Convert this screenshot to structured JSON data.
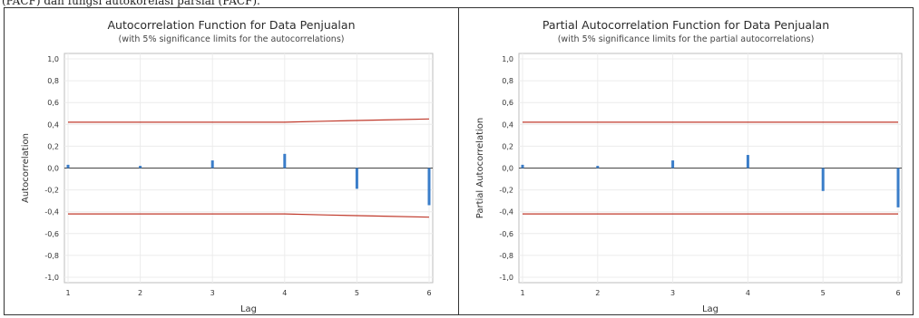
{
  "page": {
    "top_snippet": "(PACF) dan fungsi autokorelasi parsial (PACF)."
  },
  "chart_data": [
    {
      "type": "bar",
      "title": "Autocorrelation Function for Data Penjualan",
      "subtitle": "(with 5% significance limits for the autocorrelations)",
      "xlabel": "Lag",
      "ylabel": "Autocorrelation",
      "ylim": [
        -1.0,
        1.0
      ],
      "y_ticks": [
        "1,0",
        "0,8",
        "0,6",
        "0,4",
        "0,2",
        "0,0",
        "-0,2",
        "-0,4",
        "-0,6",
        "-0,8",
        "-1,0"
      ],
      "x_ticks": [
        "1",
        "2",
        "3",
        "4",
        "5",
        "6"
      ],
      "x": [
        1,
        2,
        3,
        4,
        5,
        6
      ],
      "values": [
        0.03,
        0.02,
        0.07,
        0.13,
        -0.19,
        -0.34
      ],
      "upper_limit": [
        [
          1,
          0.42
        ],
        [
          2,
          0.42
        ],
        [
          3,
          0.42
        ],
        [
          4,
          0.42
        ],
        [
          4.6,
          0.43
        ],
        [
          5.3,
          0.44
        ],
        [
          6,
          0.45
        ]
      ],
      "lower_limit": [
        [
          1,
          -0.42
        ],
        [
          2,
          -0.42
        ],
        [
          3,
          -0.42
        ],
        [
          4,
          -0.42
        ],
        [
          4.6,
          -0.43
        ],
        [
          5.3,
          -0.44
        ],
        [
          6,
          -0.45
        ]
      ],
      "grid": true,
      "colors": {
        "bar": "#3a7dc9",
        "limit": "#c0392b",
        "zero": "#444444",
        "grid": "#ececec"
      }
    },
    {
      "type": "bar",
      "title": "Partial Autocorrelation Function for Data Penjualan",
      "subtitle": "(with 5% significance limits for the partial autocorrelations)",
      "xlabel": "Lag",
      "ylabel": "Partial Autocorrelation",
      "ylim": [
        -1.0,
        1.0
      ],
      "y_ticks": [
        "1,0",
        "0,8",
        "0,6",
        "0,4",
        "0,2",
        "0,0",
        "-0,2",
        "-0,4",
        "-0,6",
        "-0,8",
        "-1,0"
      ],
      "x_ticks": [
        "1",
        "2",
        "3",
        "4",
        "5",
        "6"
      ],
      "x": [
        1,
        2,
        3,
        4,
        5,
        6
      ],
      "values": [
        0.03,
        0.02,
        0.07,
        0.12,
        -0.21,
        -0.36
      ],
      "upper_limit": [
        [
          1,
          0.42
        ],
        [
          6,
          0.42
        ]
      ],
      "lower_limit": [
        [
          1,
          -0.42
        ],
        [
          6,
          -0.42
        ]
      ],
      "grid": true,
      "colors": {
        "bar": "#3a7dc9",
        "limit": "#c0392b",
        "zero": "#444444",
        "grid": "#ececec"
      }
    }
  ]
}
